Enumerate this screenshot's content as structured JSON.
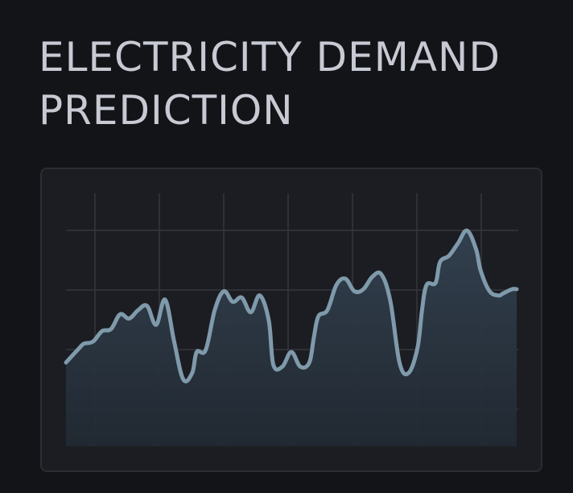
{
  "title": "ELECTRICITY DEMAND PREDICTION",
  "colors": {
    "background": "#131418",
    "panel": "#1b1d22",
    "grid": "#34363c",
    "line": "#7f9aaa",
    "area": "#2b3642"
  },
  "chart_data": {
    "type": "area",
    "title": "ELECTRICITY DEMAND PREDICTION",
    "xlabel": "",
    "ylabel": "",
    "grid": true,
    "legend": "none",
    "xlim": [
      0,
      100
    ],
    "ylim": [
      0,
      100
    ],
    "x": [
      0,
      3,
      4,
      6,
      8,
      10,
      12,
      14,
      16,
      18,
      20,
      22,
      24,
      26,
      28,
      29,
      31,
      33,
      35,
      37,
      39,
      41,
      43,
      45,
      46,
      48,
      50,
      52,
      54,
      55,
      56,
      58,
      60,
      62,
      64,
      66,
      68,
      70,
      72,
      74,
      76,
      78,
      79,
      80,
      82,
      83,
      85,
      87,
      89,
      91,
      92,
      94,
      96,
      97,
      99,
      100
    ],
    "y": [
      30,
      37,
      39,
      40,
      45,
      46,
      53,
      51,
      55,
      57,
      48,
      60,
      40,
      22,
      25,
      35,
      36,
      55,
      64,
      59,
      61,
      54,
      62,
      50,
      29,
      28,
      35,
      28,
      30,
      42,
      52,
      55,
      67,
      70,
      64,
      65,
      71,
      72,
      59,
      30,
      25,
      37,
      55,
      67,
      68,
      78,
      81,
      87,
      93,
      84,
      74,
      64,
      62,
      63,
      65,
      65
    ]
  }
}
